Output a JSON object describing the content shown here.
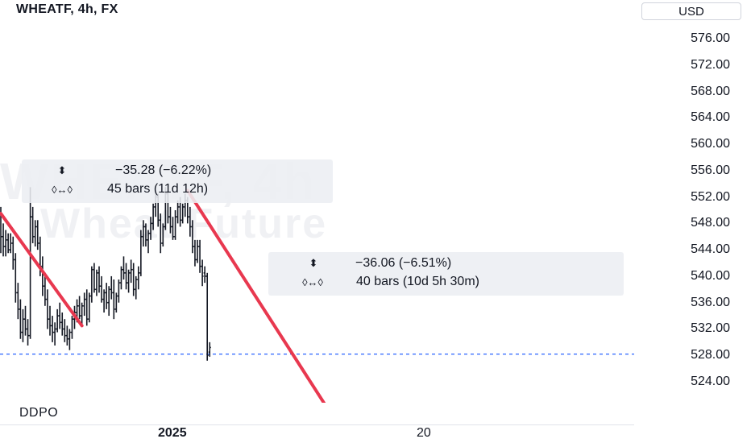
{
  "header": {
    "title": "WHEATF, 4h, FX",
    "currency": "USD"
  },
  "watermark": {
    "line1": "WHEATF, 4h",
    "line2": "Wheat Future"
  },
  "price_axis": {
    "labels": [
      "576.00",
      "572.00",
      "568.00",
      "564.00",
      "560.00",
      "556.00",
      "552.00",
      "548.00",
      "544.00",
      "540.00",
      "536.00",
      "532.00",
      "528.00",
      "524.00"
    ]
  },
  "measure_1": {
    "price_change": "−35.28 (−6.22%)",
    "duration": "45 bars (11d 12h)"
  },
  "measure_2": {
    "price_change": "−36.06 (−6.51%)",
    "duration": "40 bars (10d 5h 30m)"
  },
  "indicator": {
    "label": "DDPO"
  },
  "time_axis": {
    "labels": [
      "2025",
      "20"
    ]
  },
  "colors": {
    "trendline": "#e8384f",
    "price_line": "#2962ff",
    "candle": "#131722",
    "text": "#131722"
  },
  "chart_data": {
    "type": "candlestick",
    "ylim": [
      521.5,
      579.5
    ],
    "current_price": 528.2,
    "trendlines": [
      {
        "from": {
          "bar": 0,
          "price": 549.5
        },
        "to": {
          "bar": 33,
          "price": 532.5
        }
      },
      {
        "from": {
          "bar": 76,
          "price": 553.0
        },
        "to": {
          "bar": 132,
          "price": 520.5
        }
      }
    ],
    "candles": [
      [
        549.5,
        550.5,
        543.5,
        546.0
      ],
      [
        546.0,
        548.0,
        543.0,
        544.5
      ],
      [
        544.5,
        547.0,
        543.0,
        545.5
      ],
      [
        545.5,
        546.5,
        543.5,
        544.0
      ],
      [
        544.0,
        546.5,
        543.5,
        545.0
      ],
      [
        545.0,
        546.0,
        541.0,
        542.5
      ],
      [
        542.5,
        543.5,
        536.0,
        537.5
      ],
      [
        537.5,
        539.0,
        533.5,
        535.0
      ],
      [
        535.0,
        536.5,
        530.5,
        531.5
      ],
      [
        531.5,
        535.0,
        530.0,
        533.5
      ],
      [
        533.5,
        535.5,
        531.0,
        532.0
      ],
      [
        532.0,
        533.5,
        529.5,
        531.0
      ],
      [
        531.0,
        553.5,
        530.5,
        549.0
      ],
      [
        549.0,
        550.5,
        545.0,
        546.0
      ],
      [
        546.0,
        548.5,
        544.5,
        547.5
      ],
      [
        547.5,
        548.5,
        544.0,
        545.0
      ],
      [
        545.0,
        546.0,
        540.0,
        541.5
      ],
      [
        541.5,
        543.0,
        537.0,
        538.5
      ],
      [
        538.5,
        540.5,
        535.5,
        536.5
      ],
      [
        536.5,
        538.0,
        532.0,
        533.5
      ],
      [
        533.5,
        535.5,
        531.0,
        532.5
      ],
      [
        532.5,
        534.0,
        530.0,
        531.5
      ],
      [
        531.5,
        533.0,
        529.5,
        532.0
      ],
      [
        532.0,
        535.0,
        531.5,
        534.0
      ],
      [
        534.0,
        536.0,
        532.0,
        533.0
      ],
      [
        533.0,
        534.5,
        531.0,
        532.0
      ],
      [
        532.0,
        533.5,
        530.0,
        531.0
      ],
      [
        531.0,
        532.5,
        529.5,
        530.5
      ],
      [
        530.5,
        532.0,
        528.8,
        531.5
      ],
      [
        531.5,
        534.0,
        530.5,
        533.5
      ],
      [
        533.5,
        535.5,
        532.0,
        534.5
      ],
      [
        534.5,
        536.5,
        533.0,
        535.5
      ],
      [
        535.5,
        537.0,
        533.5,
        534.0
      ],
      [
        534.0,
        536.0,
        532.5,
        535.5
      ],
      [
        535.5,
        537.5,
        534.0,
        536.5
      ],
      [
        536.5,
        538.0,
        532.5,
        533.5
      ],
      [
        533.5,
        537.5,
        533.0,
        537.0
      ],
      [
        537.0,
        541.5,
        536.0,
        541.0
      ],
      [
        541.0,
        542.0,
        537.5,
        538.0
      ],
      [
        538.0,
        541.0,
        537.0,
        540.5
      ],
      [
        540.5,
        541.5,
        537.5,
        538.5
      ],
      [
        538.5,
        540.0,
        536.0,
        536.5
      ],
      [
        536.5,
        538.0,
        534.5,
        537.5
      ],
      [
        537.5,
        539.0,
        535.0,
        536.0
      ],
      [
        536.0,
        538.5,
        534.0,
        538.0
      ],
      [
        538.0,
        540.0,
        536.5,
        537.5
      ],
      [
        537.5,
        539.5,
        533.5,
        535.0
      ],
      [
        535.0,
        537.5,
        534.5,
        537.0
      ],
      [
        537.0,
        539.5,
        536.0,
        539.0
      ],
      [
        539.0,
        541.5,
        538.0,
        541.0
      ],
      [
        541.0,
        543.0,
        539.5,
        540.5
      ],
      [
        540.5,
        542.0,
        538.0,
        539.0
      ],
      [
        539.0,
        541.0,
        537.5,
        540.5
      ],
      [
        540.5,
        542.5,
        539.0,
        541.0
      ],
      [
        541.0,
        542.0,
        537.0,
        538.0
      ],
      [
        538.0,
        540.0,
        536.5,
        539.5
      ],
      [
        539.5,
        541.5,
        538.0,
        540.5
      ],
      [
        540.5,
        547.0,
        540.0,
        546.0
      ],
      [
        546.0,
        548.5,
        544.5,
        547.5
      ],
      [
        547.5,
        548.0,
        544.5,
        545.5
      ],
      [
        545.5,
        547.0,
        543.5,
        546.5
      ],
      [
        546.5,
        549.0,
        545.5,
        548.0
      ],
      [
        548.0,
        551.0,
        547.0,
        550.5
      ],
      [
        550.5,
        553.0,
        549.0,
        552.0
      ],
      [
        552.0,
        552.5,
        547.5,
        548.5
      ],
      [
        548.5,
        549.5,
        543.5,
        545.0
      ],
      [
        545.0,
        548.0,
        544.5,
        547.5
      ],
      [
        547.5,
        553.5,
        547.0,
        552.5
      ],
      [
        552.5,
        553.0,
        548.0,
        549.0
      ],
      [
        549.0,
        550.5,
        546.5,
        547.5
      ],
      [
        547.5,
        549.0,
        545.5,
        546.0
      ],
      [
        546.0,
        550.0,
        545.5,
        549.0
      ],
      [
        549.0,
        551.5,
        548.0,
        550.5
      ],
      [
        550.5,
        552.0,
        547.5,
        548.5
      ],
      [
        548.5,
        551.0,
        548.0,
        550.5
      ],
      [
        550.5,
        552.5,
        549.0,
        551.5
      ],
      [
        551.5,
        552.0,
        548.0,
        549.0
      ],
      [
        549.0,
        550.5,
        546.0,
        547.5
      ],
      [
        547.5,
        548.5,
        543.5,
        544.5
      ],
      [
        544.5,
        545.5,
        541.5,
        542.5
      ],
      [
        542.5,
        545.5,
        542.0,
        544.5
      ],
      [
        544.5,
        545.5,
        540.5,
        541.5
      ],
      [
        541.5,
        542.5,
        538.5,
        540.0
      ],
      [
        540.5,
        541.5,
        539.0,
        540.0
      ],
      [
        540.0,
        540.5,
        527.2,
        528.0
      ],
      [
        528.5,
        530.0,
        527.8,
        529.2
      ]
    ]
  }
}
